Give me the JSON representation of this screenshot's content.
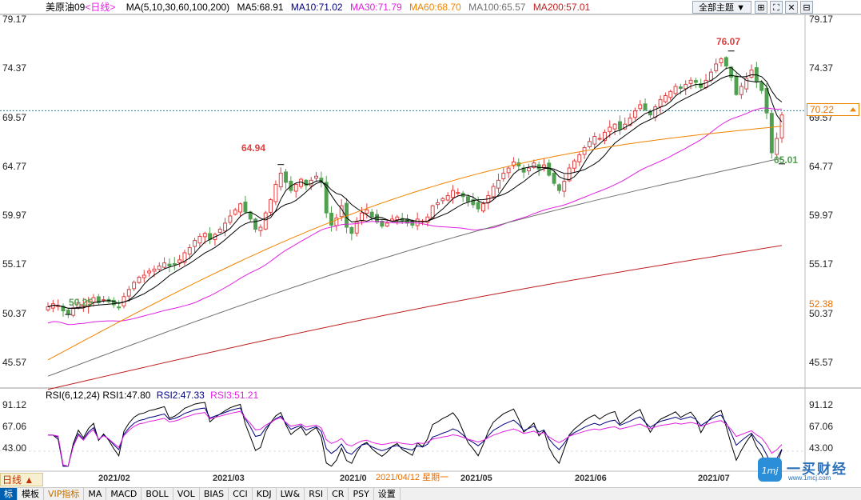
{
  "header": {
    "symbol": "美原油09",
    "period_link": "<日线>",
    "ma_params": "MA(5,10,30,60,100,200)",
    "ma5": "MA5:68.91",
    "ma10": "MA10:71.02",
    "ma30": "MA30:71.79",
    "ma60": "MA60:68.70",
    "ma100": "MA100:65.57",
    "ma200": "MA200:57.01",
    "theme_select": "全部主题"
  },
  "colors": {
    "up": "#e04040",
    "down": "#4fa04f",
    "ma5": "#000000",
    "ma10": "#000000",
    "ma30": "#e020e0",
    "ma60": "#f08300",
    "ma100": "#707070",
    "ma200": "#c02020",
    "rsi1": "#000000",
    "rsi2": "#000080",
    "rsi3": "#e020e0"
  },
  "y_axis_labels": [
    "79.17",
    "74.37",
    "69.57",
    "64.77",
    "59.97",
    "55.17",
    "50.37",
    "45.57"
  ],
  "price_tag_current": "70.22",
  "price_tag_ma": "52.38",
  "annotations": {
    "high_1": "64.94",
    "high_2": "76.07",
    "low_1": "50.25",
    "low_2": "65.01"
  },
  "rsi_header": {
    "params": "RSI(6,12,24)",
    "rsi1": "RSI1:47.80",
    "rsi2": "RSI2:47.33",
    "rsi3": "RSI3:51.21"
  },
  "rsi_axis_labels": [
    "91.12",
    "67.06",
    "43.00"
  ],
  "date_labels": [
    "2021/02",
    "2021/03",
    "2021/0",
    "2021/05",
    "2021/06",
    "2021/07"
  ],
  "cursor_date": "2021/04/12 星期一",
  "bottom_tab": "日线 ▲",
  "toolbar": [
    "标",
    "模板",
    "VIP指标",
    "MA",
    "MACD",
    "BOLL",
    "VOL",
    "BIAS",
    "CCI",
    "KDJ",
    "LW&",
    "RSI",
    "CR",
    "PSY",
    "设置"
  ],
  "logo": {
    "text": "一买财经",
    "url_text": "www.1mcj.com"
  },
  "chart_data": {
    "type": "candlestick",
    "ylim": [
      43.2,
      79.5
    ],
    "y_ticks": [
      79.17,
      74.37,
      69.57,
      64.77,
      59.97,
      55.17,
      50.37,
      45.57
    ],
    "x_ticks": [
      "2021/02",
      "2021/03",
      "2021/05",
      "2021/06",
      "2021/07"
    ],
    "close": [
      51.0,
      51.3,
      51.1,
      50.6,
      50.3,
      50.9,
      51.4,
      51.2,
      51.6,
      51.9,
      51.4,
      51.7,
      51.5,
      51.2,
      50.9,
      52.0,
      52.7,
      53.4,
      53.9,
      54.1,
      54.5,
      54.7,
      55.0,
      55.3,
      55.0,
      55.2,
      55.6,
      56.3,
      56.8,
      57.5,
      57.9,
      58.2,
      57.6,
      58.1,
      58.6,
      59.2,
      59.9,
      60.5,
      61.1,
      60.3,
      59.6,
      58.6,
      58.8,
      60.2,
      61.5,
      63.0,
      64.1,
      63.2,
      62.4,
      63.0,
      63.5,
      62.9,
      63.4,
      63.8,
      63.2,
      60.2,
      59.0,
      59.7,
      60.9,
      58.8,
      58.2,
      59.3,
      60.2,
      60.5,
      59.8,
      59.3,
      58.9,
      59.2,
      59.6,
      59.8,
      59.4,
      59.2,
      59.0,
      59.6,
      59.4,
      59.8,
      60.9,
      61.2,
      61.6,
      61.9,
      62.4,
      62.2,
      61.8,
      61.3,
      61.0,
      60.6,
      61.1,
      61.9,
      62.8,
      63.4,
      64.1,
      64.6,
      65.2,
      64.8,
      64.2,
      64.6,
      65.1,
      64.5,
      64.9,
      63.9,
      63.1,
      62.4,
      63.3,
      64.6,
      65.3,
      65.9,
      66.6,
      67.2,
      67.7,
      67.5,
      68.1,
      68.6,
      68.9,
      68.4,
      68.9,
      69.5,
      70.2,
      70.8,
      70.3,
      69.8,
      70.6,
      71.3,
      71.7,
      72.1,
      72.6,
      72.4,
      72.8,
      73.2,
      73.0,
      72.5,
      73.2,
      74.0,
      74.8,
      75.3,
      74.6,
      73.5,
      71.8,
      72.6,
      73.4,
      74.2,
      73.1,
      72.2,
      70.0,
      66.1,
      67.5,
      69.8
    ]
  }
}
